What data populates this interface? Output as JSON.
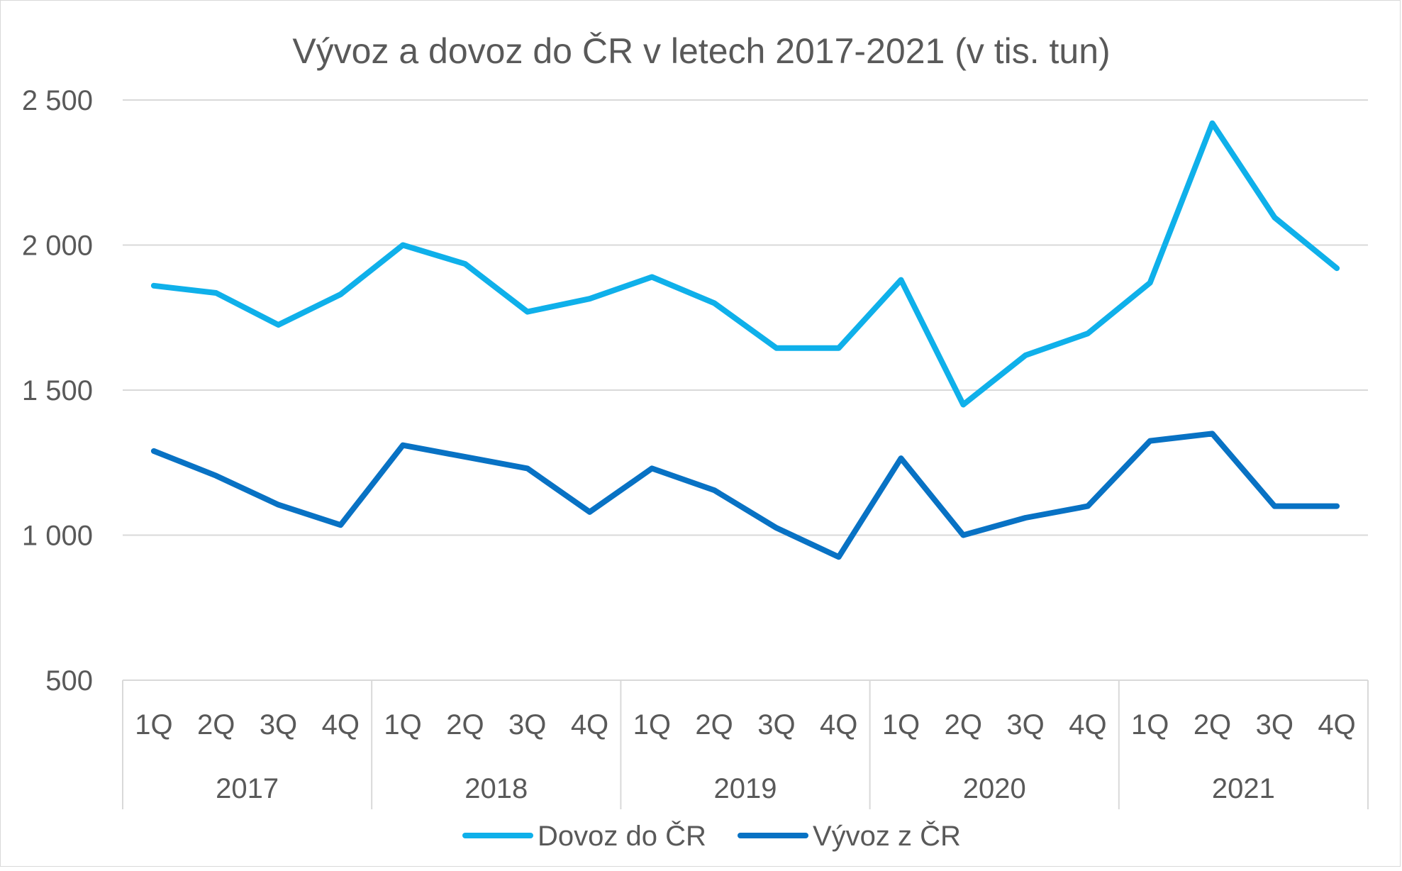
{
  "chart_data": {
    "type": "line",
    "title": "Vývoz a dovoz do ČR v letech 2017-2021 (v tis. tun)",
    "ylim": [
      500,
      2500
    ],
    "yticks": [
      500,
      1000,
      1500,
      2000,
      2500
    ],
    "ytick_labels": [
      "500",
      "1 000",
      "1 500",
      "2 000",
      "2 500"
    ],
    "grid": true,
    "legend_position": "bottom",
    "groups": [
      "2017",
      "2018",
      "2019",
      "2020",
      "2021"
    ],
    "quarters": [
      "1Q",
      "2Q",
      "3Q",
      "4Q"
    ],
    "categories": [
      "2017 1Q",
      "2017 2Q",
      "2017 3Q",
      "2017 4Q",
      "2018 1Q",
      "2018 2Q",
      "2018 3Q",
      "2018 4Q",
      "2019 1Q",
      "2019 2Q",
      "2019 3Q",
      "2019 4Q",
      "2020 1Q",
      "2020 2Q",
      "2020 3Q",
      "2020 4Q",
      "2021 1Q",
      "2021 2Q",
      "2021 3Q",
      "2021 4Q"
    ],
    "series": [
      {
        "name": "Dovoz do ČR",
        "color": "#0fb0ea",
        "values": [
          1860,
          1835,
          1725,
          1830,
          2000,
          1935,
          1770,
          1815,
          1890,
          1800,
          1645,
          1645,
          1880,
          1450,
          1620,
          1695,
          1870,
          2420,
          2095,
          1920
        ]
      },
      {
        "name": "Vývoz z ČR",
        "color": "#0872c4",
        "values": [
          1290,
          1205,
          1105,
          1035,
          1310,
          1270,
          1230,
          1080,
          1230,
          1155,
          1025,
          925,
          1265,
          1000,
          1060,
          1100,
          1325,
          1350,
          1100,
          1100
        ]
      }
    ]
  }
}
